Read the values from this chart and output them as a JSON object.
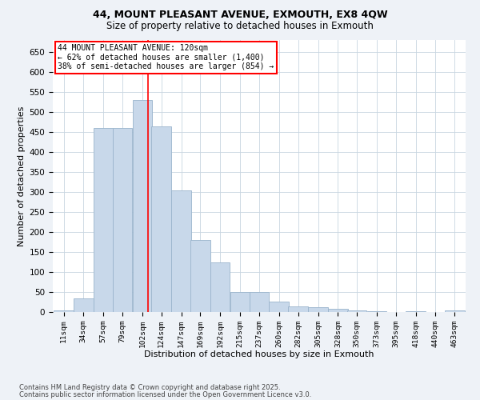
{
  "title_line1": "44, MOUNT PLEASANT AVENUE, EXMOUTH, EX8 4QW",
  "title_line2": "Size of property relative to detached houses in Exmouth",
  "xlabel": "Distribution of detached houses by size in Exmouth",
  "ylabel": "Number of detached properties",
  "annotation_line1": "44 MOUNT PLEASANT AVENUE: 120sqm",
  "annotation_line2": "← 62% of detached houses are smaller (1,400)",
  "annotation_line3": "38% of semi-detached houses are larger (854) →",
  "property_size": 120,
  "bar_color": "#c8d8ea",
  "bar_edge_color": "#9ab4cc",
  "red_line_x": 120,
  "categories": [
    "11sqm",
    "34sqm",
    "57sqm",
    "79sqm",
    "102sqm",
    "124sqm",
    "147sqm",
    "169sqm",
    "192sqm",
    "215sqm",
    "237sqm",
    "260sqm",
    "282sqm",
    "305sqm",
    "328sqm",
    "350sqm",
    "373sqm",
    "395sqm",
    "418sqm",
    "440sqm",
    "463sqm"
  ],
  "bin_starts": [
    11,
    34,
    57,
    79,
    102,
    124,
    147,
    169,
    192,
    215,
    237,
    260,
    282,
    305,
    328,
    350,
    373,
    395,
    418,
    440,
    463
  ],
  "bin_width": 23,
  "values": [
    5,
    35,
    460,
    460,
    530,
    465,
    305,
    180,
    125,
    50,
    50,
    27,
    15,
    12,
    8,
    5,
    2,
    1,
    3,
    0,
    5
  ],
  "ylim": [
    0,
    680
  ],
  "yticks": [
    0,
    50,
    100,
    150,
    200,
    250,
    300,
    350,
    400,
    450,
    500,
    550,
    600,
    650
  ],
  "footer_line1": "Contains HM Land Registry data © Crown copyright and database right 2025.",
  "footer_line2": "Contains public sector information licensed under the Open Government Licence v3.0.",
  "bg_color": "#eef2f7",
  "plot_bg_color": "#ffffff",
  "grid_color": "#c8d4e0"
}
